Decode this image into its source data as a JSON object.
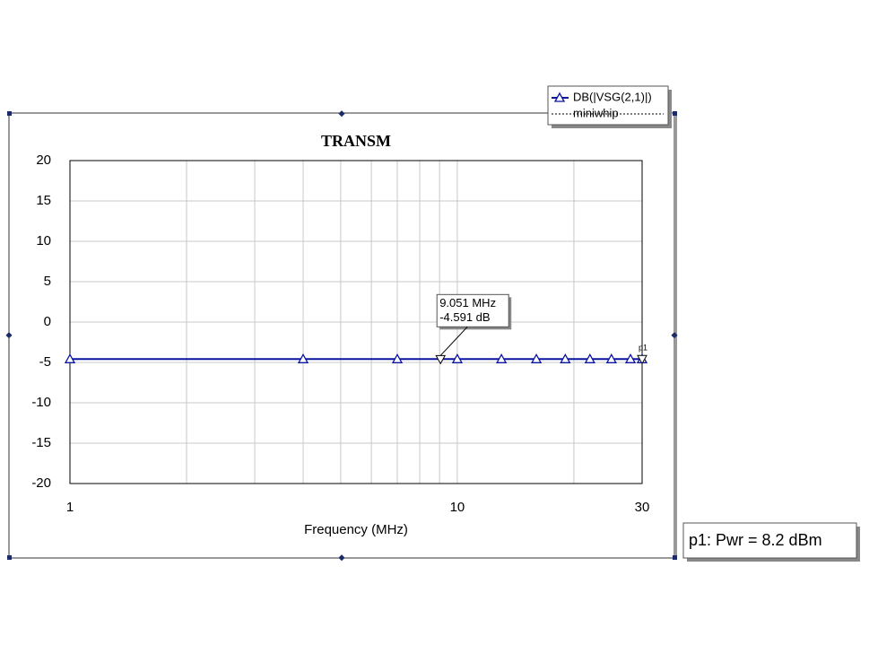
{
  "chart_data": {
    "type": "line",
    "title": "TRANSM",
    "x_label": "Frequency (MHz)",
    "xscale": "log",
    "xlim": [
      1,
      30
    ],
    "xticks": [
      1,
      10,
      30
    ],
    "xgrid_minor": [
      2,
      3,
      4,
      5,
      6,
      7,
      8,
      9,
      20
    ],
    "ylim": [
      -20,
      20
    ],
    "yticks": [
      20,
      15,
      10,
      5,
      0,
      -5,
      -10,
      -15,
      -20
    ],
    "grid": true,
    "x": [
      1,
      4,
      7,
      10,
      13,
      16,
      19,
      22,
      25,
      28,
      30
    ],
    "series": [
      {
        "name": "DB(|VSG(2,1)|)",
        "source": "miniwhip",
        "color": "#0a14a0",
        "values": [
          -4.59,
          -4.59,
          -4.59,
          -4.59,
          -4.59,
          -4.59,
          -4.59,
          -4.59,
          -4.59,
          -4.59,
          -4.59
        ]
      }
    ],
    "markers": [
      {
        "x": 9.051,
        "y": -4.591,
        "value_labels": [
          "9.051 MHz",
          "-4.591 dB"
        ]
      },
      {
        "x": 30,
        "y": -4.59,
        "label": "p1"
      }
    ],
    "annotation": "p1: Pwr = 8.2 dBm"
  }
}
